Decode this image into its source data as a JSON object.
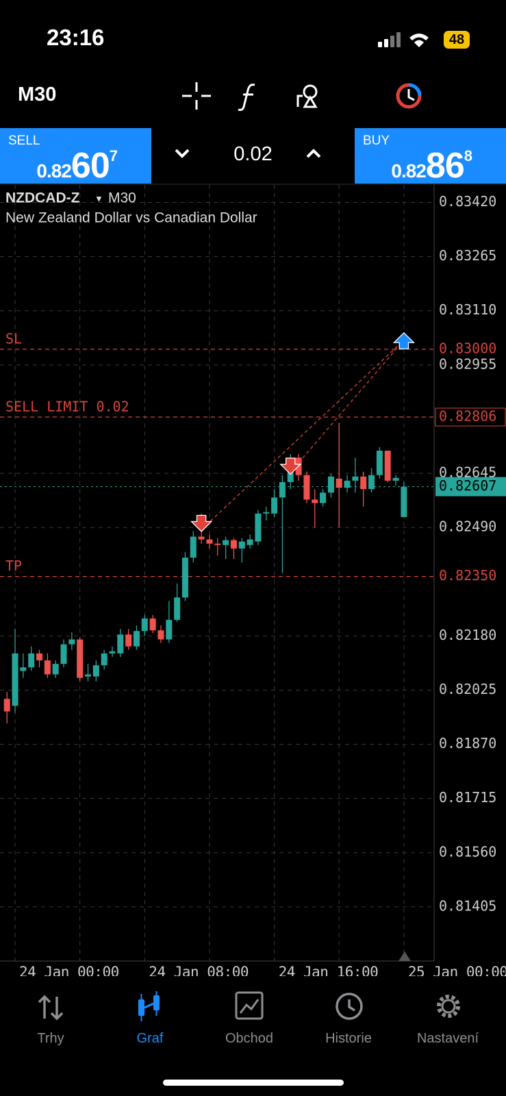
{
  "status_bar": {
    "time": "23:16",
    "battery": "48"
  },
  "toolbar": {
    "timeframe": "M30"
  },
  "trade_panel": {
    "sell": {
      "label": "SELL",
      "price_prefix": "0.82",
      "price_big": "60",
      "price_small": "7"
    },
    "volume": "0.02",
    "buy": {
      "label": "BUY",
      "price_prefix": "0.82",
      "price_big": "86",
      "price_small": "8"
    }
  },
  "chart_data": {
    "type": "candlestick",
    "symbol": "NZDCAD-Z",
    "timeframe": "M30",
    "description": "New Zealand Dollar vs Canadian Dollar",
    "categories": [
      null,
      "24 Jan 00:00",
      null,
      null,
      null,
      null,
      null,
      null,
      null,
      null,
      null,
      null,
      null,
      null,
      null,
      null,
      null,
      "24 Jan 08:00",
      null,
      null,
      null,
      null,
      null,
      null,
      null,
      null,
      null,
      null,
      null,
      null,
      null,
      null,
      null,
      "24 Jan 16:00",
      null,
      null,
      null,
      null,
      null,
      null,
      null,
      null,
      null,
      null,
      null,
      null,
      null,
      null,
      null,
      "25 Jan 00:00"
    ],
    "open": [
      0.82,
      0.8198,
      0.8208,
      0.8209,
      0.8213,
      0.8211,
      0.8207,
      0.821,
      0.82156,
      0.8217,
      0.82064,
      0.82064,
      0.82096,
      0.8213,
      0.8213,
      0.82184,
      0.8215,
      0.82194,
      0.8223,
      0.82196,
      0.8217,
      0.82226,
      0.8229,
      0.82404,
      0.82464,
      0.82456,
      0.82444,
      0.8244,
      0.82454,
      0.8243,
      0.8244,
      0.8245,
      0.8253,
      0.8253,
      0.82576,
      0.8262,
      0.8269,
      0.8264,
      0.8257,
      0.8256,
      0.8259,
      0.8263,
      0.82604,
      0.82624,
      0.82636,
      0.826,
      0.8264,
      0.8271,
      0.82624,
      0.8252
    ],
    "high": [
      0.8202,
      0.822,
      0.8213,
      0.8215,
      0.8214,
      0.8213,
      0.8211,
      0.8217,
      0.8219,
      0.82176,
      0.821,
      0.8211,
      0.8214,
      0.8215,
      0.822,
      0.822,
      0.8221,
      0.8224,
      0.8224,
      0.8221,
      0.8228,
      0.8233,
      0.8242,
      0.8248,
      0.8253,
      0.8247,
      0.8246,
      0.82464,
      0.8246,
      0.8246,
      0.8247,
      0.8254,
      0.8255,
      0.826,
      0.8264,
      0.827,
      0.827,
      0.8265,
      0.826,
      0.826,
      0.82644,
      0.8279,
      0.8264,
      0.8269,
      0.8265,
      0.8266,
      0.8272,
      0.8271,
      0.8264,
      0.8262
    ],
    "low": [
      0.8193,
      0.8196,
      0.8206,
      0.8208,
      0.8209,
      0.8206,
      0.8206,
      0.8209,
      0.8214,
      0.8205,
      0.8205,
      0.8205,
      0.82084,
      0.8212,
      0.8212,
      0.8214,
      0.8214,
      0.8218,
      0.82188,
      0.8216,
      0.8216,
      0.8222,
      0.8228,
      0.8239,
      0.82444,
      0.8243,
      0.8241,
      0.824,
      0.824,
      0.8239,
      0.8243,
      0.8244,
      0.8251,
      0.8252,
      0.8236,
      0.826,
      0.82624,
      0.8256,
      0.8249,
      0.8255,
      0.82576,
      0.8249,
      0.8259,
      0.8259,
      0.8255,
      0.8259,
      0.8263,
      0.8262,
      0.8261,
      0.8252
    ],
    "close": [
      0.81964,
      0.8213,
      0.8209,
      0.8213,
      0.8211,
      0.8207,
      0.821,
      0.82156,
      0.8217,
      0.8206,
      0.8207,
      0.82096,
      0.8213,
      0.82136,
      0.82184,
      0.8215,
      0.82194,
      0.8223,
      0.82196,
      0.8217,
      0.82226,
      0.8229,
      0.82404,
      0.82464,
      0.82456,
      0.82444,
      0.8244,
      0.82454,
      0.8243,
      0.8245,
      0.82456,
      0.8253,
      0.82534,
      0.82576,
      0.8262,
      0.8269,
      0.8264,
      0.8257,
      0.8256,
      0.8259,
      0.82636,
      0.82604,
      0.82624,
      0.82636,
      0.826,
      0.8264,
      0.8271,
      0.82624,
      0.82632,
      0.82607
    ],
    "up_color": "#26a69a",
    "down_color": "#ef5350",
    "ylim": [
      0.8125,
      0.8347
    ],
    "yticks": [
      {
        "value": 0.8342,
        "label": "0.83420"
      },
      0.83265,
      {
        "value": 0.8311,
        "label": "0.83110"
      },
      0.82955,
      0.82645,
      {
        "value": 0.8249,
        "label": "0.82490"
      },
      {
        "value": 0.8218,
        "label": "0.82180"
      },
      0.82025,
      {
        "value": 0.8187,
        "label": "0.81870"
      },
      0.81715,
      {
        "value": 0.8156,
        "label": "0.81560"
      },
      0.81405
    ],
    "grid": true,
    "levels": [
      {
        "name": "SL",
        "value": 0.83,
        "value_label": "0.83000",
        "color": "#d9453d",
        "style": "text"
      },
      {
        "name": "SELL LIMIT 0.02",
        "value": 0.82806,
        "value_label": "0.82806",
        "color": "#d9453d",
        "style": "box"
      },
      {
        "name": "TP",
        "value": 0.8235,
        "value_label": "0.82350",
        "color": "#d9453d",
        "style": "text"
      }
    ],
    "last_price": {
      "value": 0.82607,
      "value_label": "0.82607",
      "color": "#26a69a"
    },
    "trades": [
      {
        "direction": "sell",
        "category": 24,
        "price": 0.825
      },
      {
        "direction": "sell",
        "category": 35,
        "price": 0.82664
      },
      {
        "direction": "buy",
        "category": 49,
        "price": 0.83026
      }
    ]
  },
  "nav": {
    "items": [
      {
        "label": "Trhy"
      },
      {
        "label": "Graf"
      },
      {
        "label": "Obchod"
      },
      {
        "label": "Historie"
      },
      {
        "label": "Nastavení"
      }
    ],
    "active": 1
  }
}
